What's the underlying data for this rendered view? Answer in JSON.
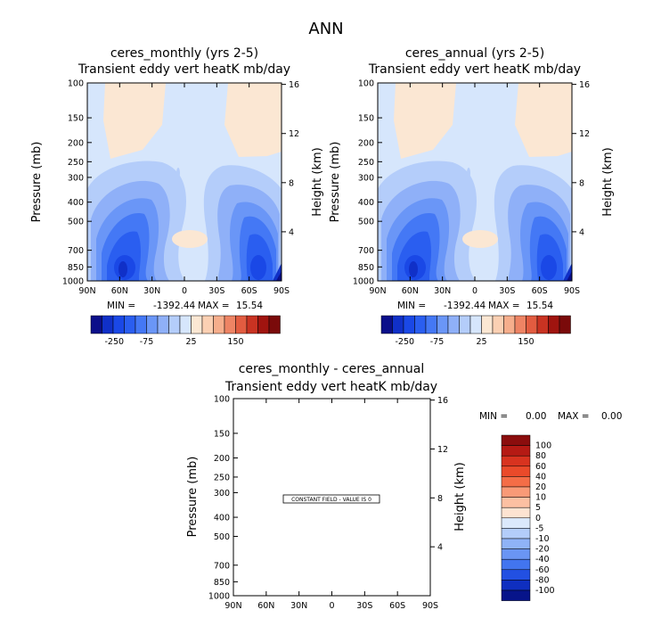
{
  "figure": {
    "title": "ANN"
  },
  "chart_data": [
    {
      "type": "contour",
      "title": "ceres_monthly (yrs 2-5)",
      "subtitle": "Transient eddy vert heatK  mb/day",
      "xlabel": "",
      "ylabel": "Pressure (mb)",
      "y2label": "Height (km)",
      "x_ticks": [
        "90N",
        "60N",
        "30N",
        "0",
        "30S",
        "60S",
        "90S"
      ],
      "y_ticks": [
        100,
        150,
        200,
        250,
        300,
        400,
        500,
        700,
        850,
        1000
      ],
      "y2_ticks": [
        4,
        8,
        12,
        16
      ],
      "min_label": "MIN = ",
      "min_value": "-1392.44",
      "max_label": "MAX = ",
      "max_value": "15.54",
      "colorbar": {
        "orientation": "horizontal",
        "labels": [
          "-250",
          "-75",
          "25",
          "150"
        ],
        "colors": [
          "#0b0f8a",
          "#1030c8",
          "#1a48e6",
          "#2a5ef0",
          "#4478f5",
          "#6a96f7",
          "#8fb0f8",
          "#b4cdfa",
          "#d6e6fc",
          "#fbe7d3",
          "#fbd0b3",
          "#f6ae8c",
          "#ee8464",
          "#e25c40",
          "#c93322",
          "#a0140f",
          "#7a0a0a"
        ]
      }
    },
    {
      "type": "contour",
      "title": "ceres_annual (yrs 2-5)",
      "subtitle": "Transient eddy vert heatK  mb/day",
      "xlabel": "",
      "ylabel": "Pressure (mb)",
      "y2label": "Height (km)",
      "x_ticks": [
        "90N",
        "60N",
        "30N",
        "0",
        "30S",
        "60S",
        "90S"
      ],
      "y_ticks": [
        100,
        150,
        200,
        250,
        300,
        400,
        500,
        700,
        850,
        1000
      ],
      "y2_ticks": [
        4,
        8,
        12,
        16
      ],
      "min_label": "MIN = ",
      "min_value": "-1392.44",
      "max_label": "MAX = ",
      "max_value": "15.54",
      "colorbar": {
        "orientation": "horizontal",
        "labels": [
          "-250",
          "-75",
          "25",
          "150"
        ],
        "colors": [
          "#0b0f8a",
          "#1030c8",
          "#1a48e6",
          "#2a5ef0",
          "#4478f5",
          "#6a96f7",
          "#8fb0f8",
          "#b4cdfa",
          "#d6e6fc",
          "#fbe7d3",
          "#fbd0b3",
          "#f6ae8c",
          "#ee8464",
          "#e25c40",
          "#c93322",
          "#a0140f",
          "#7a0a0a"
        ]
      }
    },
    {
      "type": "contour",
      "title": "ceres_monthly - ceres_annual",
      "subtitle": "Transient eddy vert heatK  mb/day",
      "xlabel": "",
      "ylabel": "Pressure (mb)",
      "y2label": "Height (km)",
      "x_ticks": [
        "90N",
        "60N",
        "30N",
        "0",
        "30S",
        "60S",
        "90S"
      ],
      "y_ticks": [
        100,
        150,
        200,
        250,
        300,
        400,
        500,
        700,
        850,
        1000
      ],
      "y2_ticks": [
        4,
        8,
        12,
        16
      ],
      "min_label": "MIN = ",
      "min_value": "0.00",
      "max_label": "MAX = ",
      "max_value": "0.00",
      "constant_note": "CONSTANT FIELD - VALUE IS 0",
      "colorbar": {
        "orientation": "vertical",
        "labels": [
          "100",
          "80",
          "60",
          "40",
          "20",
          "10",
          "5",
          "0",
          "-5",
          "-10",
          "-20",
          "-40",
          "-60",
          "-80",
          "-100"
        ],
        "colors": [
          "#8b0d0d",
          "#b51a14",
          "#d8331f",
          "#ea4a2a",
          "#f46d47",
          "#f99a77",
          "#fcc0a2",
          "#fde3d1",
          "#dbe9fc",
          "#b3cdfa",
          "#8fb3f7",
          "#6a95f4",
          "#4275ef",
          "#2250e2",
          "#0f2fc0",
          "#07148a"
        ]
      }
    }
  ]
}
